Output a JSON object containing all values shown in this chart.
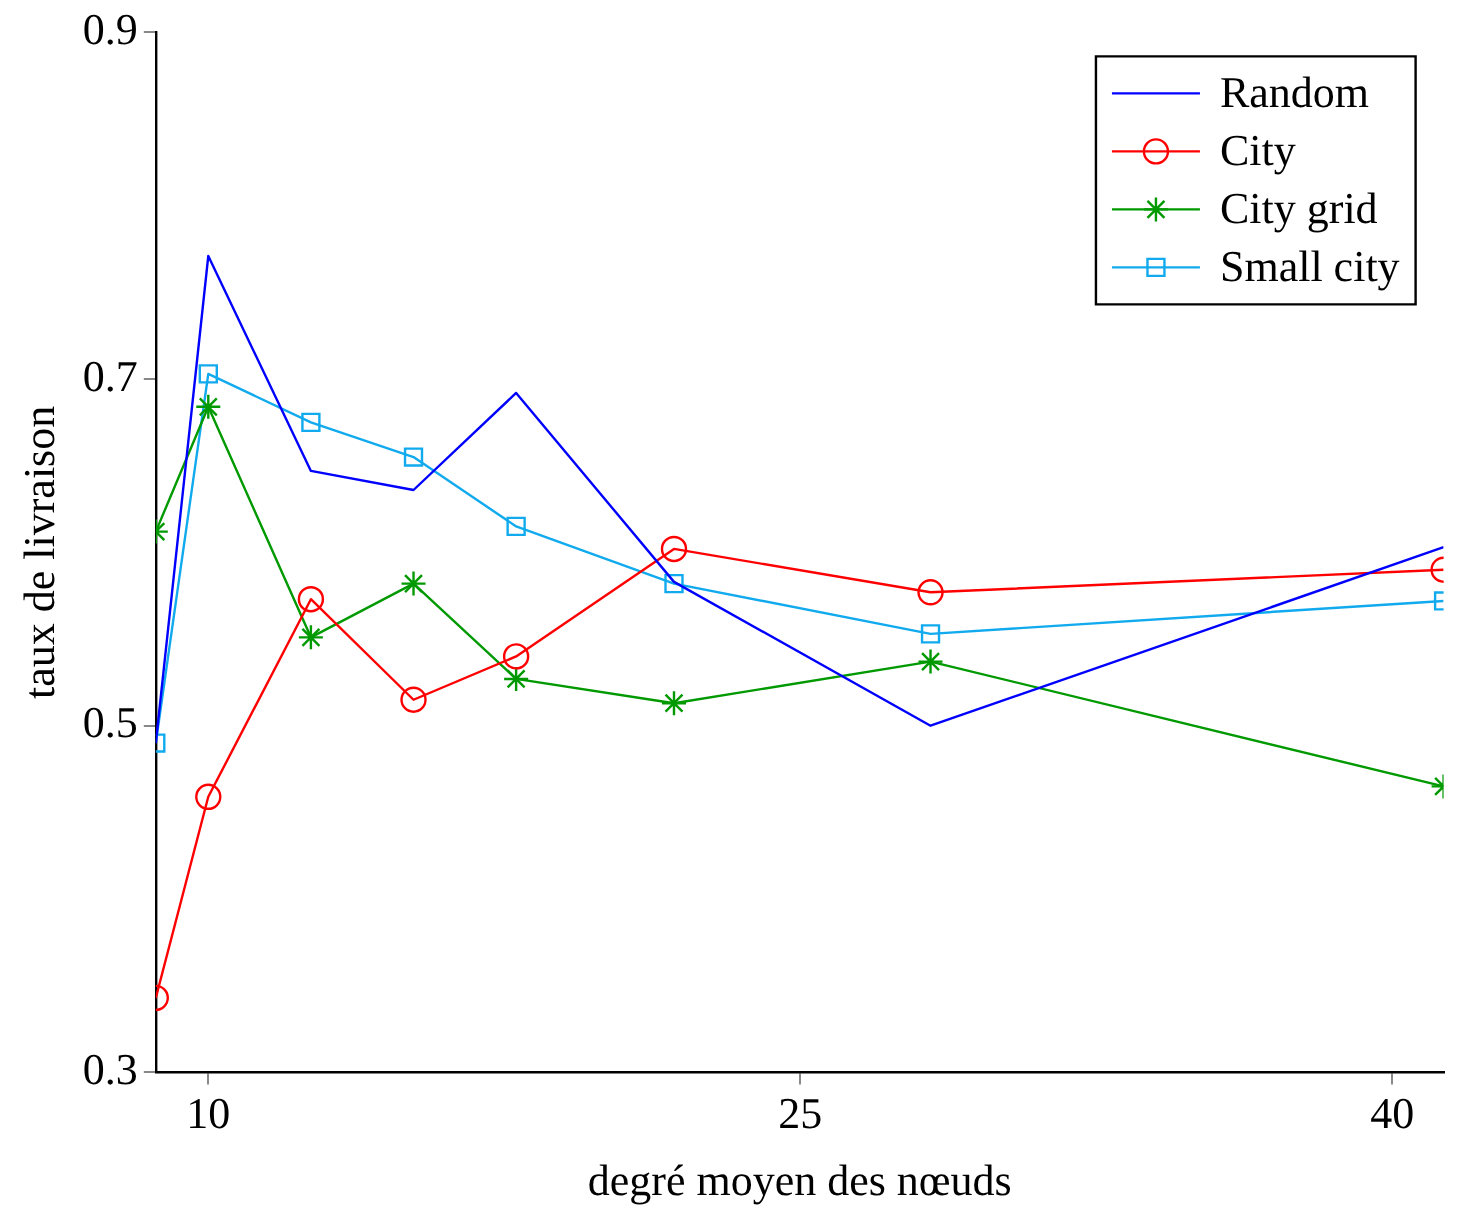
{
  "chart_data": {
    "type": "line",
    "xlabel": "degré moyen des nœuds",
    "ylabel": "taux de livraison",
    "x": [
      8.67,
      10,
      12.6,
      15.2,
      17.8,
      21.8,
      28.3,
      41.3
    ],
    "xlim": [
      8.67,
      41.3
    ],
    "xticks": [
      10,
      25,
      40
    ],
    "ylim": [
      0.3,
      0.9
    ],
    "yticks": [
      0.3,
      0.5,
      0.7,
      0.9
    ],
    "grid": false,
    "legend": "top right",
    "series": [
      {
        "name": "Random",
        "color": "#0000ff",
        "marker": "none",
        "values": [
          0.49,
          0.771,
          0.647,
          0.636,
          0.692,
          0.583,
          0.5,
          0.603
        ]
      },
      {
        "name": "City",
        "color": "#ff0000",
        "marker": "circle",
        "values": [
          0.343,
          0.459,
          0.573,
          0.515,
          0.54,
          0.602,
          0.577,
          0.59
        ]
      },
      {
        "name": "City grid",
        "color": "#009900",
        "marker": "cross",
        "values": [
          0.612,
          0.684,
          0.551,
          0.582,
          0.527,
          0.513,
          0.537,
          0.465
        ]
      },
      {
        "name": "Small city",
        "color": "#11aaee",
        "marker": "square",
        "values": [
          0.49,
          0.703,
          0.675,
          0.655,
          0.615,
          0.582,
          0.553,
          0.572
        ]
      }
    ]
  }
}
